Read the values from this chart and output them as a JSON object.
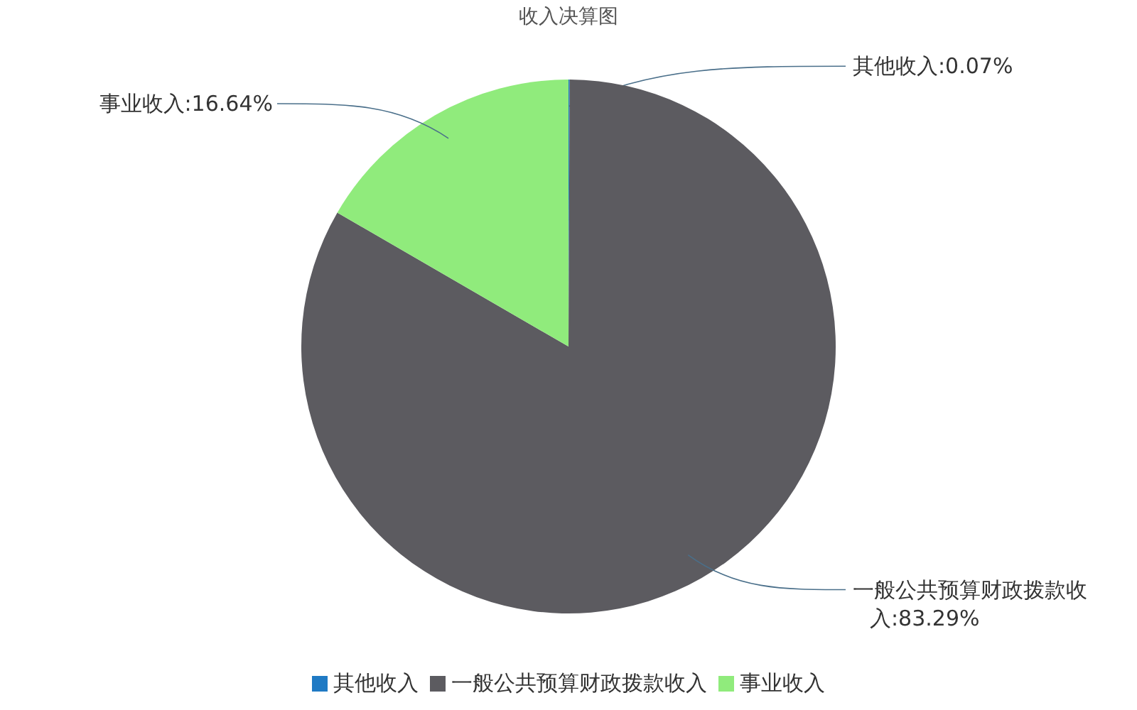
{
  "chart_data": {
    "type": "pie",
    "title": "收入决算图",
    "categories": [
      "其他收入",
      "一般公共预算财政拨款收入",
      "事业收入"
    ],
    "values": [
      0.07,
      83.29,
      16.64
    ],
    "colors": [
      "#1f7ac4",
      "#5c5b60",
      "#90eb7c"
    ],
    "value_labels": [
      "其他收入:0.07%",
      "一般公共预算财政拨款收入:83.29%",
      "事业收入:16.64%"
    ],
    "legend": "bottom"
  }
}
